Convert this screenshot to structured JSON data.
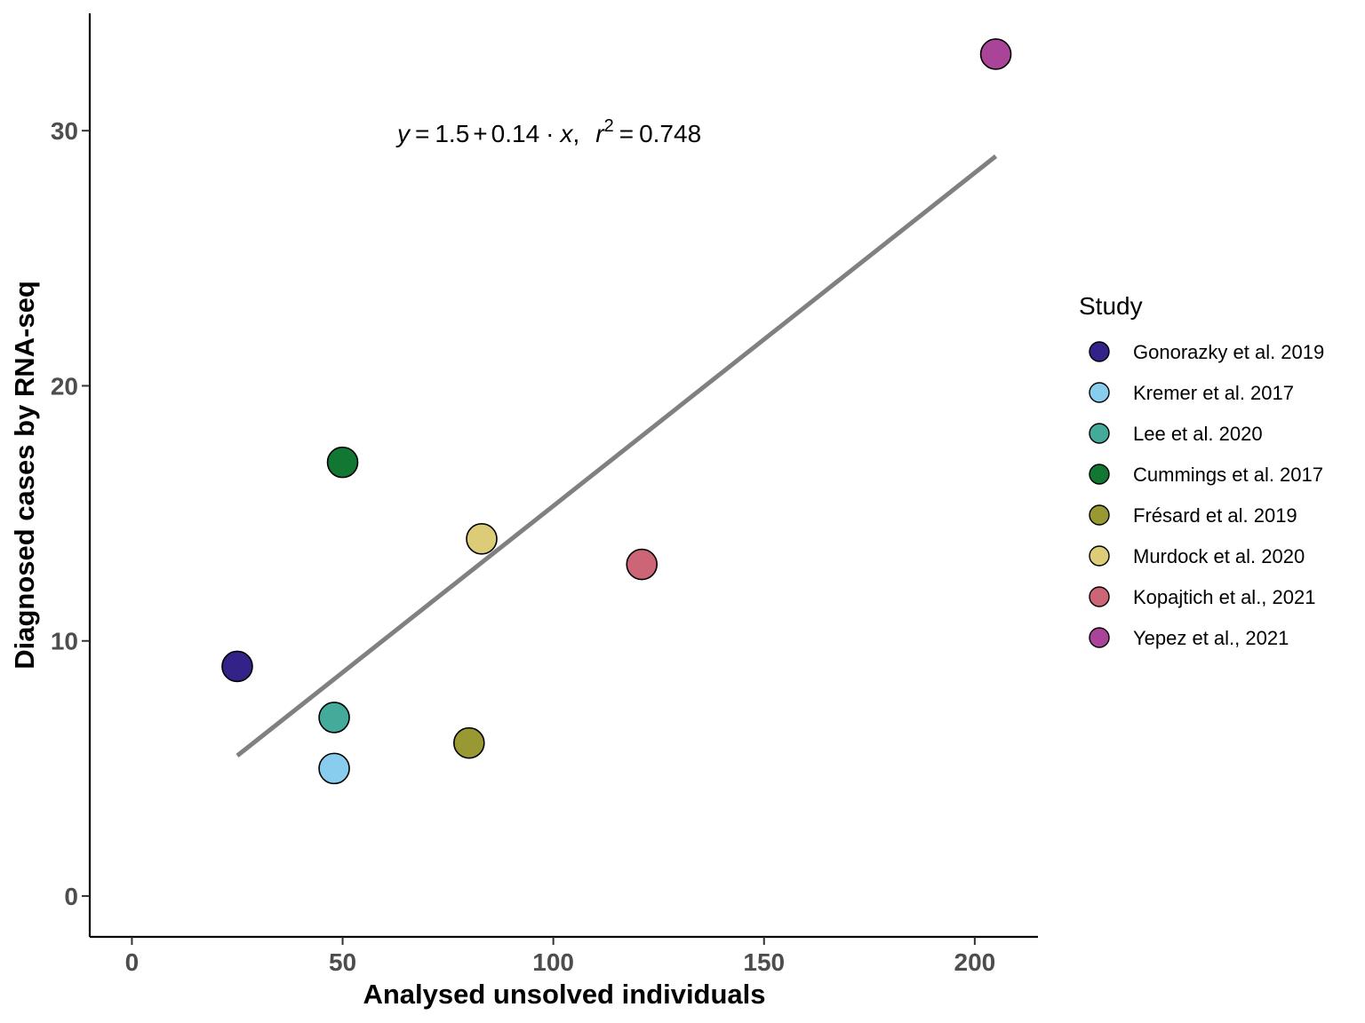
{
  "chart_data": {
    "type": "scatter",
    "xlabel": "Analysed unsolved individuals",
    "ylabel": "Diagnosed cases by RNA-seq",
    "xlim": [
      -10,
      215
    ],
    "ylim": [
      -1.6,
      34.6
    ],
    "x_ticks": [
      0,
      50,
      100,
      150,
      200
    ],
    "y_ticks": [
      0,
      10,
      20,
      30
    ],
    "x_tick_labels": [
      "0",
      "50",
      "100",
      "150",
      "200"
    ],
    "y_tick_labels": [
      "0",
      "10",
      "20",
      "30"
    ],
    "grid": false,
    "legend": {
      "title": "Study",
      "placement": "right"
    },
    "series": [
      {
        "name": "Gonorazky et al. 2019",
        "color": "#332288",
        "points": [
          {
            "x": 25,
            "y": 9
          }
        ]
      },
      {
        "name": "Kremer et al. 2017",
        "color": "#88CCEE",
        "points": [
          {
            "x": 48,
            "y": 5
          }
        ]
      },
      {
        "name": "Lee et al. 2020",
        "color": "#44AA99",
        "points": [
          {
            "x": 48,
            "y": 7
          }
        ]
      },
      {
        "name": "Cummings et al. 2017",
        "color": "#117733",
        "points": [
          {
            "x": 50,
            "y": 17
          }
        ]
      },
      {
        "name": "Frésard et al. 2019",
        "color": "#999933",
        "points": [
          {
            "x": 80,
            "y": 6
          }
        ]
      },
      {
        "name": "Murdock et al. 2020",
        "color": "#DDCC77",
        "points": [
          {
            "x": 83,
            "y": 14
          }
        ]
      },
      {
        "name": "Kopajtich et al., 2021",
        "color": "#CC6677",
        "points": [
          {
            "x": 121,
            "y": 13
          }
        ]
      },
      {
        "name": "Yepez et al., 2021",
        "color": "#AA4499",
        "points": [
          {
            "x": 205,
            "y": 33
          }
        ]
      }
    ],
    "regression": {
      "intercept": 1.5,
      "slope": 0.14,
      "r2": 0.748,
      "x_range": [
        25,
        205
      ],
      "y_range": [
        5.5,
        29.0
      ],
      "color": "#808080",
      "label": {
        "y_var": "y",
        "intercept_text": "1.5",
        "slope_text": "0.14",
        "x_var": "x",
        "r_var": "r",
        "r_exp": "2",
        "r2_text": "0.748"
      }
    }
  }
}
